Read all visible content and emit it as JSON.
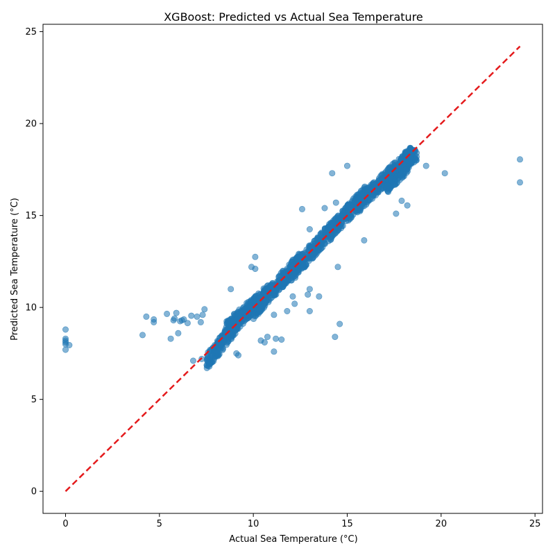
{
  "chart_data": {
    "type": "scatter",
    "title": "XGBoost: Predicted vs Actual Sea Temperature",
    "xlabel": "Actual Sea Temperature (°C)",
    "ylabel": "Predicted Sea Temperature (°C)",
    "xlim": [
      -1.2,
      25.4
    ],
    "ylim": [
      -1.2,
      25.4
    ],
    "xticks": [
      0,
      5,
      10,
      15,
      20,
      25
    ],
    "xtick_labels": [
      "0",
      "5",
      "10",
      "15",
      "20",
      "25"
    ],
    "yticks": [
      0,
      5,
      10,
      15,
      20,
      25
    ],
    "ytick_labels": [
      "0",
      "5",
      "10",
      "15",
      "20",
      "25"
    ],
    "grid": false,
    "legend": "none",
    "point_color": "#1f77b4",
    "point_alpha": 0.55,
    "reference_line": {
      "x": [
        0,
        24.2
      ],
      "y": [
        0,
        24.2
      ],
      "color": "#e41a1c",
      "style": "dashed"
    },
    "clusters": [
      {
        "x_range": [
          7.5,
          9.5
        ],
        "y_range": [
          7.0,
          9.6
        ],
        "count": 220
      },
      {
        "x_range": [
          8.5,
          10.8
        ],
        "y_range": [
          8.8,
          10.8
        ],
        "count": 260
      },
      {
        "x_range": [
          10.0,
          12.5
        ],
        "y_range": [
          9.8,
          12.6
        ],
        "count": 300
      },
      {
        "x_range": [
          12.0,
          14.2
        ],
        "y_range": [
          11.8,
          14.3
        ],
        "count": 220
      },
      {
        "x_range": [
          14.0,
          16.0
        ],
        "y_range": [
          14.0,
          16.2
        ],
        "count": 220
      },
      {
        "x_range": [
          15.5,
          18.5
        ],
        "y_range": [
          15.5,
          18.4
        ],
        "count": 320
      },
      {
        "x_range": [
          17.0,
          18.7
        ],
        "y_range": [
          16.5,
          18.3
        ],
        "count": 140
      }
    ],
    "points": [
      {
        "x": 0.0,
        "y": 8.8
      },
      {
        "x": 0.0,
        "y": 8.3
      },
      {
        "x": 0.0,
        "y": 8.2
      },
      {
        "x": 0.0,
        "y": 8.1
      },
      {
        "x": 0.0,
        "y": 8.0
      },
      {
        "x": 0.0,
        "y": 7.7
      },
      {
        "x": 0.2,
        "y": 7.95
      },
      {
        "x": 4.1,
        "y": 8.5
      },
      {
        "x": 4.3,
        "y": 9.5
      },
      {
        "x": 4.7,
        "y": 9.2
      },
      {
        "x": 4.7,
        "y": 9.35
      },
      {
        "x": 5.4,
        "y": 9.65
      },
      {
        "x": 5.6,
        "y": 8.3
      },
      {
        "x": 5.75,
        "y": 9.3
      },
      {
        "x": 5.8,
        "y": 9.4
      },
      {
        "x": 5.9,
        "y": 9.7
      },
      {
        "x": 6.0,
        "y": 8.6
      },
      {
        "x": 6.1,
        "y": 9.25
      },
      {
        "x": 6.2,
        "y": 9.3
      },
      {
        "x": 6.3,
        "y": 9.35
      },
      {
        "x": 6.5,
        "y": 9.15
      },
      {
        "x": 6.7,
        "y": 9.55
      },
      {
        "x": 6.8,
        "y": 7.1
      },
      {
        "x": 7.0,
        "y": 9.5
      },
      {
        "x": 7.2,
        "y": 9.2
      },
      {
        "x": 7.25,
        "y": 7.2
      },
      {
        "x": 7.3,
        "y": 9.6
      },
      {
        "x": 7.4,
        "y": 9.9
      },
      {
        "x": 8.8,
        "y": 11.0
      },
      {
        "x": 9.9,
        "y": 12.2
      },
      {
        "x": 10.1,
        "y": 12.1
      },
      {
        "x": 10.1,
        "y": 12.75
      },
      {
        "x": 9.1,
        "y": 7.5
      },
      {
        "x": 9.2,
        "y": 7.4
      },
      {
        "x": 10.4,
        "y": 8.2
      },
      {
        "x": 10.6,
        "y": 8.1
      },
      {
        "x": 10.75,
        "y": 8.4
      },
      {
        "x": 11.1,
        "y": 7.6
      },
      {
        "x": 11.2,
        "y": 8.3
      },
      {
        "x": 11.5,
        "y": 8.25
      },
      {
        "x": 11.1,
        "y": 9.6
      },
      {
        "x": 11.8,
        "y": 9.8
      },
      {
        "x": 12.1,
        "y": 10.6
      },
      {
        "x": 12.2,
        "y": 10.2
      },
      {
        "x": 13.0,
        "y": 9.8
      },
      {
        "x": 13.0,
        "y": 11.0
      },
      {
        "x": 13.5,
        "y": 10.6
      },
      {
        "x": 12.9,
        "y": 10.7
      },
      {
        "x": 12.6,
        "y": 15.35
      },
      {
        "x": 13.0,
        "y": 14.25
      },
      {
        "x": 13.8,
        "y": 15.4
      },
      {
        "x": 14.2,
        "y": 17.3
      },
      {
        "x": 14.4,
        "y": 15.7
      },
      {
        "x": 14.5,
        "y": 12.2
      },
      {
        "x": 14.6,
        "y": 9.1
      },
      {
        "x": 14.35,
        "y": 8.4
      },
      {
        "x": 15.0,
        "y": 17.7
      },
      {
        "x": 15.9,
        "y": 13.65
      },
      {
        "x": 17.6,
        "y": 15.1
      },
      {
        "x": 18.2,
        "y": 15.55
      },
      {
        "x": 17.9,
        "y": 15.8
      },
      {
        "x": 18.7,
        "y": 18.4
      },
      {
        "x": 18.7,
        "y": 18.2
      },
      {
        "x": 19.2,
        "y": 17.7
      },
      {
        "x": 20.2,
        "y": 17.3
      },
      {
        "x": 24.2,
        "y": 18.05
      },
      {
        "x": 24.2,
        "y": 16.8
      }
    ]
  }
}
